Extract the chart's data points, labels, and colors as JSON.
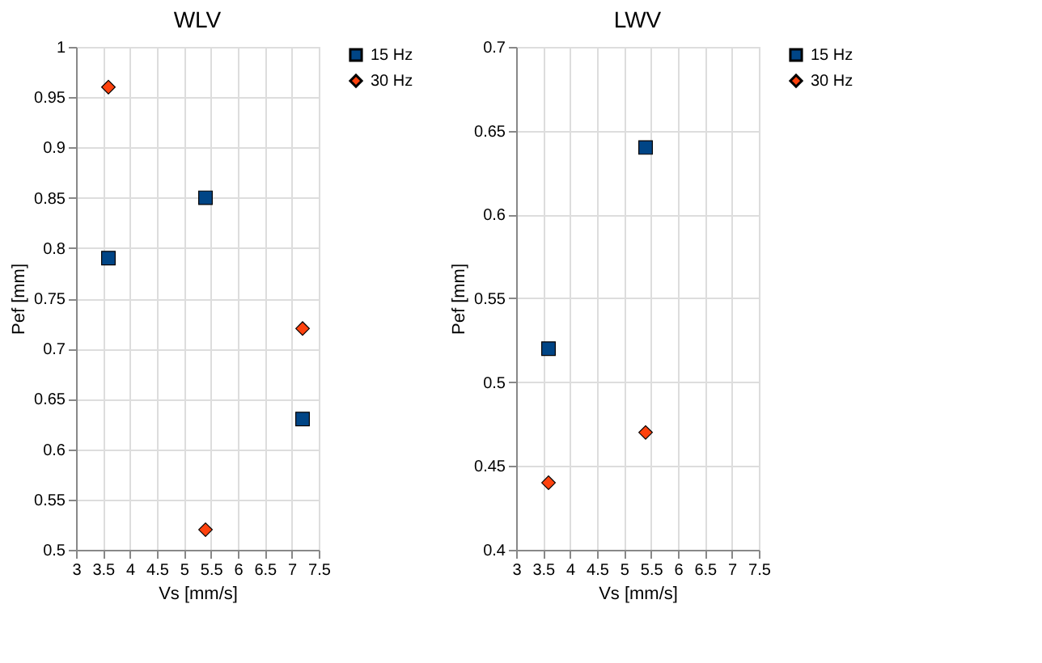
{
  "chart_data": [
    {
      "type": "scatter",
      "title": "WLV",
      "xlabel": "Vs [mm/s]",
      "ylabel": "Pef [mm]",
      "xlim": [
        3,
        7.5
      ],
      "xticks": [
        3,
        3.5,
        4,
        4.5,
        5,
        5.5,
        6,
        6.5,
        7,
        7.5
      ],
      "ylim": [
        0.5,
        1
      ],
      "yticks": [
        0.5,
        0.55,
        0.6,
        0.65,
        0.7,
        0.75,
        0.8,
        0.85,
        0.9,
        0.95,
        1
      ],
      "grid": true,
      "legend": "right",
      "x": [
        3.6,
        5.4,
        7.2
      ],
      "series": [
        {
          "name": "15 Hz",
          "color": "#004586",
          "marker": "square",
          "values": [
            0.79,
            0.85,
            0.63
          ]
        },
        {
          "name": "30 Hz",
          "color": "#ff420e",
          "marker": "diamond",
          "values": [
            0.96,
            0.52,
            0.72
          ]
        }
      ]
    },
    {
      "type": "scatter",
      "title": "LWV",
      "xlabel": "Vs [mm/s]",
      "ylabel": "Pef [mm]",
      "xlim": [
        3,
        7.5
      ],
      "xticks": [
        3,
        3.5,
        4,
        4.5,
        5,
        5.5,
        6,
        6.5,
        7,
        7.5
      ],
      "ylim": [
        0.4,
        0.7
      ],
      "yticks": [
        0.4,
        0.45,
        0.5,
        0.55,
        0.6,
        0.65,
        0.7
      ],
      "grid": true,
      "legend": "right",
      "x": [
        3.6,
        5.4
      ],
      "series": [
        {
          "name": "15 Hz",
          "color": "#004586",
          "marker": "square",
          "values": [
            0.52,
            0.64
          ]
        },
        {
          "name": "30 Hz",
          "color": "#ff420e",
          "marker": "diamond",
          "values": [
            0.44,
            0.47
          ]
        }
      ]
    }
  ]
}
